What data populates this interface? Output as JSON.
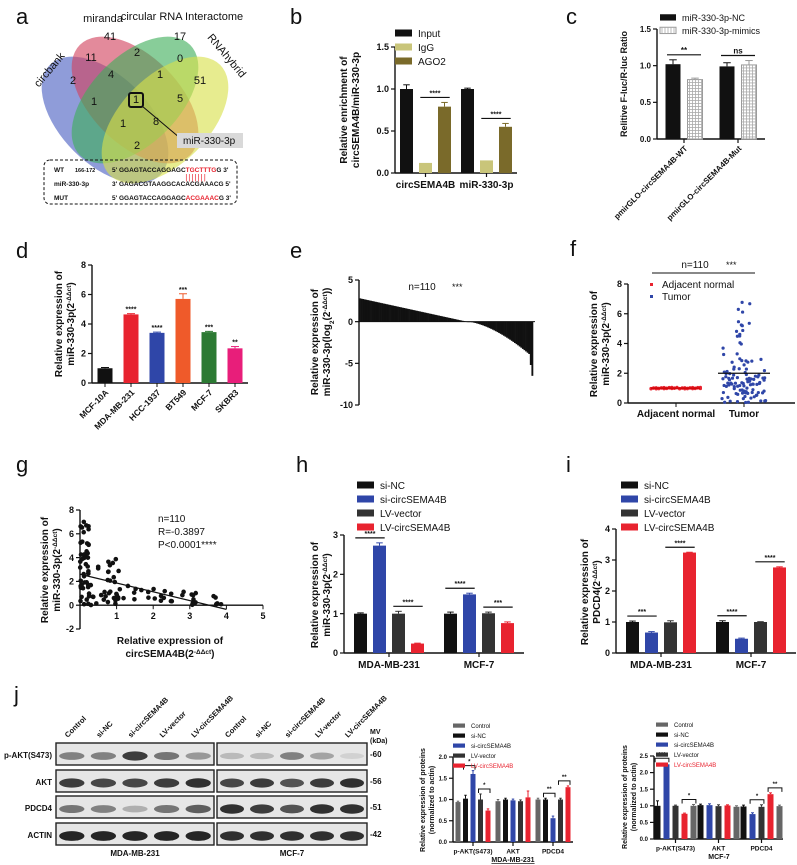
{
  "panel_labels": [
    "a",
    "b",
    "c",
    "d",
    "e",
    "f",
    "g",
    "h",
    "i",
    "j"
  ],
  "chart_data": [
    {
      "id": "a",
      "type": "venn",
      "sets": [
        {
          "name": "circbank",
          "color": "#4a5fc1"
        },
        {
          "name": "miranda",
          "color": "#d2425e"
        },
        {
          "name": "circular RNA Interactome",
          "color": "#3fae5a"
        },
        {
          "name": "RNAhybrid",
          "color": "#d9e04a"
        }
      ],
      "regions": [
        "41",
        "17",
        "2",
        "11",
        "2",
        "0",
        "51",
        "4",
        "1",
        "1",
        "1",
        "5",
        "1",
        "8",
        "2"
      ],
      "callout": "miR-330-3p",
      "alignment": [
        {
          "label": "WT",
          "pos": "166-172",
          "prefix": "5' GGAGTACCAGGAGC",
          "highlight": "TGCTTTG",
          "suffix": "G  3'"
        },
        {
          "label": "miR-330-3p",
          "pos": "",
          "prefix": "3' GAGACGTAAGGCACACGAAACG 5'",
          "highlight": "",
          "suffix": ""
        },
        {
          "label": "MUT",
          "pos": "",
          "prefix": "5' GGAGTACCAGGAGC",
          "highlight": "ACGAAAC",
          "suffix": "G  3'"
        }
      ],
      "pair_lines": "|||||||"
    },
    {
      "id": "b",
      "type": "bar",
      "ylabel": [
        "Relative enrichment of",
        "circSEMA4B/miR-330-3p"
      ],
      "ylim": [
        0,
        1.5
      ],
      "yticks": [
        "0.0",
        "0.5",
        "1.0",
        "1.5"
      ],
      "categories": [
        "circSEMA4B",
        "miR-330-3p"
      ],
      "series": [
        {
          "name": "Input",
          "color": "#111111",
          "values": [
            1.0,
            1.0
          ],
          "err": [
            0.05,
            0.01
          ]
        },
        {
          "name": "IgG",
          "color": "#c9c57a",
          "values": [
            0.12,
            0.15
          ],
          "err": [
            0.0,
            0.0
          ]
        },
        {
          "name": "AGO2",
          "color": "#7a6a2a",
          "values": [
            0.79,
            0.55
          ],
          "err": [
            0.05,
            0.04
          ]
        }
      ],
      "sig": [
        {
          "cat": 0,
          "from": 1,
          "to": 2,
          "text": "****"
        },
        {
          "cat": 1,
          "from": 1,
          "to": 2,
          "text": "****"
        }
      ]
    },
    {
      "id": "c",
      "type": "bar",
      "ylabel": [
        "Relitive F-luc/R-luc Ratio"
      ],
      "ylim": [
        0,
        1.5
      ],
      "yticks": [
        "0.0",
        "0.5",
        "1.0",
        "1.5"
      ],
      "categories": [
        "pmirGLO-circSEMA4B-WT",
        "pmirGLO-circSEMA4B-Mut"
      ],
      "series": [
        {
          "name": "miR-330-3p-NC",
          "color": "#111111",
          "values": [
            1.02,
            0.99
          ],
          "err": [
            0.06,
            0.05
          ]
        },
        {
          "name": "miR-330-3p-mimics",
          "color": "#9a9a9a",
          "pattern": "grid",
          "values": [
            0.81,
            1.01
          ],
          "err": [
            0.02,
            0.06
          ]
        }
      ],
      "sig": [
        {
          "cat": 0,
          "from": 0,
          "to": 1,
          "text": "**"
        },
        {
          "cat": 1,
          "from": 0,
          "to": 1,
          "text": "ns"
        }
      ]
    },
    {
      "id": "d",
      "type": "bar",
      "ylabel": [
        "Relative expression of",
        "miR-330-3p(2^-ΔΔct)"
      ],
      "ylim": [
        0,
        8
      ],
      "yticks": [
        "0",
        "2",
        "4",
        "6",
        "8"
      ],
      "categories": [
        "MCF-10A",
        "MDA-MB-231",
        "HCC-1937",
        "BT549",
        "MCF-7",
        "SKBR3"
      ],
      "values": [
        1.0,
        4.65,
        3.4,
        5.7,
        3.45,
        2.35
      ],
      "err": [
        0.05,
        0.05,
        0.05,
        0.35,
        0.05,
        0.12
      ],
      "colors": [
        "#111111",
        "#e8232f",
        "#2f46a8",
        "#ef5a2a",
        "#2c7a33",
        "#e81e7a"
      ],
      "labels": [
        "",
        "****",
        "****",
        "***",
        "***",
        "**"
      ]
    },
    {
      "id": "e",
      "type": "waterfall",
      "ylabel": [
        "Relative expression of",
        "miR-330-3p(log2(2^-ΔΔct))"
      ],
      "ylim": [
        -10,
        5
      ],
      "yticks": [
        "5",
        "0",
        "-5",
        "-10"
      ],
      "n": 110,
      "annotation": "n=110",
      "sig": "***",
      "range": [
        2.8,
        -6.5
      ]
    },
    {
      "id": "f",
      "type": "scatter",
      "ylabel": [
        "Relative expression of",
        "miR-330-3p(2^-ΔΔct)"
      ],
      "ylim": [
        0,
        8
      ],
      "yticks": [
        "0",
        "2",
        "4",
        "6",
        "8"
      ],
      "categories": [
        "Adjacent normal",
        "Tumor"
      ],
      "legend": [
        {
          "name": "Adjacent normal",
          "color": "#e8232f"
        },
        {
          "name": "Tumor",
          "color": "#2f46a8"
        }
      ],
      "means": [
        1.0,
        2.0
      ],
      "annotation": "n=110",
      "sig": "***"
    },
    {
      "id": "g",
      "type": "scatter",
      "xlabel": [
        "Relative expression of",
        "circSEMA4B(2^-ΔΔct)"
      ],
      "ylabel": [
        "Relative expression of",
        "miR-330-3p(2^-ΔΔct)"
      ],
      "xlim": [
        0,
        5
      ],
      "ylim": [
        -2,
        8
      ],
      "xticks": [
        "1",
        "2",
        "3",
        "4",
        "5"
      ],
      "yticks": [
        "-2",
        "0",
        "2",
        "4",
        "6",
        "8"
      ],
      "fit": {
        "x": [
          0,
          4
        ],
        "y": [
          2.6,
          -0.35
        ]
      },
      "stats": [
        "n=110",
        "R=-0.3897",
        "P<0.0001****"
      ]
    },
    {
      "id": "h",
      "type": "bar",
      "ylabel": [
        "Relative expression of",
        "miR-330-3p(2^-ΔΔct)"
      ],
      "ylim": [
        0,
        3
      ],
      "yticks": [
        "0",
        "1",
        "2",
        "3"
      ],
      "categories": [
        "MDA-MB-231",
        "MCF-7"
      ],
      "series": [
        {
          "name": "si-NC",
          "color": "#111111",
          "values": [
            1.0,
            1.0
          ],
          "err": [
            0.02,
            0.04
          ]
        },
        {
          "name": "si-circSEMA4B",
          "color": "#2f46a8",
          "values": [
            2.73,
            1.49
          ],
          "err": [
            0.07,
            0.03
          ]
        },
        {
          "name": "LV-vector",
          "color": "#333333",
          "values": [
            1.0,
            1.01
          ],
          "err": [
            0.06,
            0.03
          ]
        },
        {
          "name": "LV-circSEMA4B",
          "color": "#e8232f",
          "values": [
            0.24,
            0.76
          ],
          "err": [
            0.01,
            0.03
          ]
        }
      ],
      "sig": [
        {
          "cat": 0,
          "from": 0,
          "to": 1,
          "text": "****"
        },
        {
          "cat": 0,
          "from": 2,
          "to": 3,
          "text": "****"
        },
        {
          "cat": 1,
          "from": 0,
          "to": 1,
          "text": "****"
        },
        {
          "cat": 1,
          "from": 2,
          "to": 3,
          "text": "***"
        }
      ]
    },
    {
      "id": "i",
      "type": "bar",
      "ylabel": [
        "Relative expression of",
        "PDCD4(2^-ΔΔct)"
      ],
      "ylim": [
        0,
        4
      ],
      "yticks": [
        "0",
        "1",
        "2",
        "3",
        "4"
      ],
      "categories": [
        "MDA-MB-231",
        "MCF-7"
      ],
      "series": [
        {
          "name": "si-NC",
          "color": "#111111",
          "values": [
            1.0,
            1.0
          ],
          "err": [
            0.03,
            0.04
          ]
        },
        {
          "name": "si-circSEMA4B",
          "color": "#2f46a8",
          "values": [
            0.66,
            0.46
          ],
          "err": [
            0.03,
            0.02
          ]
        },
        {
          "name": "LV-vector",
          "color": "#333333",
          "values": [
            0.99,
            1.0
          ],
          "err": [
            0.05,
            0.01
          ]
        },
        {
          "name": "LV-circSEMA4B",
          "color": "#e8232f",
          "values": [
            3.24,
            2.76
          ],
          "err": [
            0.01,
            0.02
          ]
        }
      ],
      "sig": [
        {
          "cat": 0,
          "from": 0,
          "to": 1,
          "text": "***"
        },
        {
          "cat": 0,
          "from": 2,
          "to": 3,
          "text": "****"
        },
        {
          "cat": 1,
          "from": 0,
          "to": 1,
          "text": "****"
        },
        {
          "cat": 1,
          "from": 2,
          "to": 3,
          "text": "****"
        }
      ]
    },
    {
      "id": "j-blot",
      "type": "western-blot",
      "lanes": [
        "Control",
        "si-NC",
        "si-circSEMA4B",
        "LV-vector",
        "LV-circSEMA4B"
      ],
      "rows": [
        "p-AKT(S473)",
        "AKT",
        "PDCD4",
        "ACTIN"
      ],
      "mw_header": [
        "MV",
        "(kDa)"
      ],
      "mw": [
        "60",
        "56",
        "51",
        "42"
      ],
      "cells": [
        "MDA-MB-231",
        "MCF-7"
      ]
    },
    {
      "id": "j-bar-mda",
      "type": "bar",
      "ylabel": [
        "Relative expression of proteins",
        "(normalized to actin)"
      ],
      "xtitle": "MDA-MB-231",
      "ylim": [
        0,
        2.0
      ],
      "yticks": [
        "0.0",
        "0.5",
        "1.0",
        "1.5",
        "2.0"
      ],
      "categories": [
        "p-AKT(S473)",
        "AKT",
        "PDCD4"
      ],
      "series": [
        {
          "name": "Control",
          "color": "#666666",
          "values": [
            0.94,
            0.96,
            1.0
          ],
          "err": [
            0.02,
            0.04,
            0.03
          ]
        },
        {
          "name": "si-NC",
          "color": "#111111",
          "values": [
            1.02,
            1.0,
            1.0
          ],
          "err": [
            0.08,
            0.03,
            0.03
          ]
        },
        {
          "name": "si-circSEMA4B",
          "color": "#2f46a8",
          "values": [
            1.6,
            0.98,
            0.56
          ],
          "err": [
            0.08,
            0.03,
            0.05
          ]
        },
        {
          "name": "LV-vector",
          "color": "#333333",
          "values": [
            1.0,
            0.96,
            1.0
          ],
          "err": [
            0.13,
            0.03,
            0.03
          ]
        },
        {
          "name": "LV-circSEMA4B",
          "color": "#e8232f",
          "values": [
            0.74,
            1.05,
            1.29
          ],
          "err": [
            0.04,
            0.15,
            0.03
          ]
        }
      ],
      "sig": [
        {
          "cat": 0,
          "from": 1,
          "to": 2,
          "text": "*"
        },
        {
          "cat": 0,
          "from": 3,
          "to": 4,
          "text": "*"
        },
        {
          "cat": 2,
          "from": 1,
          "to": 2,
          "text": "**"
        },
        {
          "cat": 2,
          "from": 3,
          "to": 4,
          "text": "**"
        }
      ]
    },
    {
      "id": "j-bar-mcf",
      "type": "bar",
      "ylabel": [
        "Relative expression of proteins",
        "(normalized to actin)"
      ],
      "xtitle": "MCF-7",
      "ylim": [
        0,
        2.5
      ],
      "yticks": [
        "0.0",
        "0.5",
        "1.0",
        "1.5",
        "2.0",
        "2.5"
      ],
      "categories": [
        "p-AKT(S473)",
        "AKT",
        "PDCD4"
      ],
      "series": [
        {
          "name": "Control",
          "color": "#666666",
          "values": [
            1.0,
            1.02,
            0.98
          ],
          "err": [
            0.15,
            0.03,
            0.04
          ]
        },
        {
          "name": "si-NC",
          "color": "#111111",
          "values": [
            2.25,
            1.02,
            0.75
          ],
          "err": [
            0.03,
            0.04,
            0.04
          ]
        },
        {
          "name": "si-circSEMA4B",
          "color": "#2f46a8",
          "values": [
            1.0,
            0.99,
            0.97
          ],
          "err": [
            0.02,
            0.04,
            0.06
          ]
        },
        {
          "name": "LV-vector",
          "color": "#333333",
          "values": [
            0.76,
            1.01,
            1.35
          ],
          "err": [
            0.02,
            0.02,
            0.04
          ]
        },
        {
          "name": "LV-circSEMA4B",
          "color": "#e8232f",
          "values": [
            1.0,
            0.97,
            0.99
          ],
          "err": [
            0.04,
            0.03,
            0.03
          ]
        }
      ],
      "bar_colors": [
        [
          "#111111",
          "#2f46a8",
          "#333333",
          "#e8232f",
          "#666666"
        ],
        [
          "#111111",
          "#2f46a8",
          "#333333",
          "#e8232f",
          "#666666"
        ],
        [
          "#111111",
          "#2f46a8",
          "#333333",
          "#e8232f",
          "#666666"
        ]
      ],
      "sig": [
        {
          "cat": 0,
          "from": 0,
          "to": 1,
          "text": "***"
        },
        {
          "cat": 0,
          "from": 3,
          "to": 4,
          "text": "*"
        },
        {
          "cat": 2,
          "from": 1,
          "to": 2,
          "text": "*"
        },
        {
          "cat": 2,
          "from": 3,
          "to": 4,
          "text": "**"
        }
      ]
    }
  ]
}
